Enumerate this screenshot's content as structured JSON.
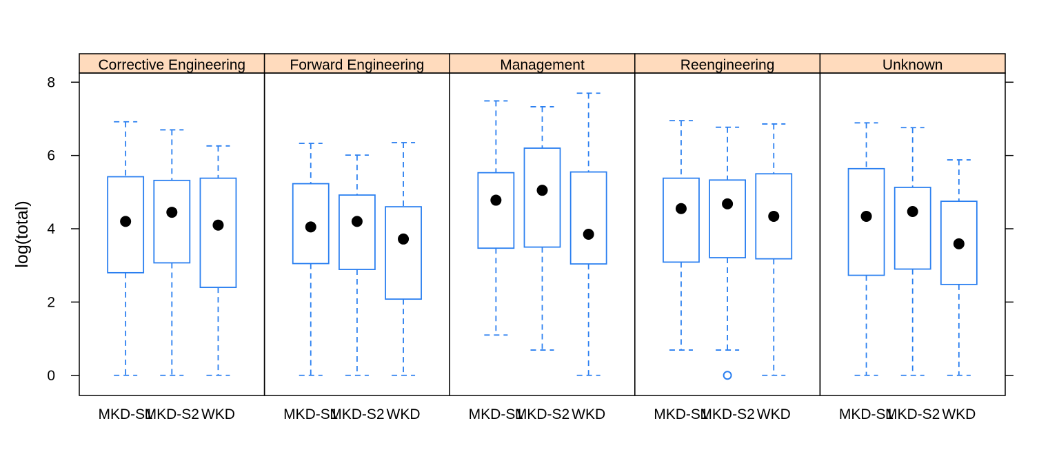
{
  "chart_data": {
    "type": "box",
    "ylabel": "log(total)",
    "ylim": [
      -0.55,
      8.25
    ],
    "yticks": [
      0,
      2,
      4,
      6,
      8
    ],
    "ytick_labels": [
      "0",
      "2",
      "4",
      "6",
      "8"
    ],
    "categories": [
      "MKD-S1",
      "MKD-S2",
      "WKD"
    ],
    "colors": {
      "box": "#2a7ff0",
      "median": "#000000",
      "strip": "#ffdbbd",
      "frame": "#000000"
    },
    "panels": [
      {
        "name": "Corrective Engineering",
        "boxes": [
          {
            "category": "MKD-S1",
            "min": 0,
            "q1": 2.8,
            "median": 4.2,
            "q3": 5.42,
            "max": 6.92,
            "outliers": []
          },
          {
            "category": "MKD-S2",
            "min": 0,
            "q1": 3.07,
            "median": 4.45,
            "q3": 5.32,
            "max": 6.7,
            "outliers": []
          },
          {
            "category": "WKD",
            "min": 0,
            "q1": 2.4,
            "median": 4.1,
            "q3": 5.38,
            "max": 6.26,
            "outliers": []
          }
        ]
      },
      {
        "name": "Forward Engineering",
        "boxes": [
          {
            "category": "MKD-S1",
            "min": 0,
            "q1": 3.05,
            "median": 4.05,
            "q3": 5.23,
            "max": 6.33,
            "outliers": []
          },
          {
            "category": "MKD-S2",
            "min": 0,
            "q1": 2.89,
            "median": 4.2,
            "q3": 4.92,
            "max": 6.01,
            "outliers": []
          },
          {
            "category": "WKD",
            "min": 0,
            "q1": 2.08,
            "median": 3.72,
            "q3": 4.6,
            "max": 6.35,
            "outliers": []
          }
        ]
      },
      {
        "name": "Management",
        "boxes": [
          {
            "category": "MKD-S1",
            "min": 1.1,
            "q1": 3.47,
            "median": 4.78,
            "q3": 5.53,
            "max": 7.49,
            "outliers": []
          },
          {
            "category": "MKD-S2",
            "min": 0.69,
            "q1": 3.5,
            "median": 5.05,
            "q3": 6.2,
            "max": 7.33,
            "outliers": []
          },
          {
            "category": "WKD",
            "min": 0,
            "q1": 3.04,
            "median": 3.85,
            "q3": 5.55,
            "max": 7.7,
            "outliers": []
          }
        ]
      },
      {
        "name": "Reengineering",
        "boxes": [
          {
            "category": "MKD-S1",
            "min": 0.69,
            "q1": 3.09,
            "median": 4.55,
            "q3": 5.38,
            "max": 6.95,
            "outliers": []
          },
          {
            "category": "MKD-S2",
            "min": 0.69,
            "q1": 3.21,
            "median": 4.68,
            "q3": 5.33,
            "max": 6.77,
            "outliers": [
              0
            ]
          },
          {
            "category": "WKD",
            "min": 0,
            "q1": 3.18,
            "median": 4.34,
            "q3": 5.5,
            "max": 6.86,
            "outliers": []
          }
        ]
      },
      {
        "name": "Unknown",
        "boxes": [
          {
            "category": "MKD-S1",
            "min": 0,
            "q1": 2.73,
            "median": 4.34,
            "q3": 5.64,
            "max": 6.89,
            "outliers": []
          },
          {
            "category": "MKD-S2",
            "min": 0,
            "q1": 2.9,
            "median": 4.47,
            "q3": 5.13,
            "max": 6.76,
            "outliers": []
          },
          {
            "category": "WKD",
            "min": 0,
            "q1": 2.48,
            "median": 3.59,
            "q3": 4.75,
            "max": 5.88,
            "outliers": []
          }
        ]
      }
    ]
  }
}
